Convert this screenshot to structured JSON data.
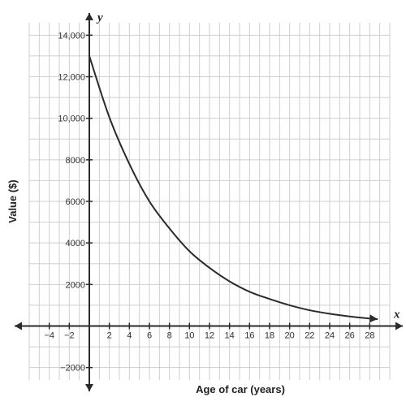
{
  "chart_data": {
    "type": "line",
    "title": "",
    "xlabel": "Age of car (years)",
    "ylabel": "Value ($)",
    "x_axis_var": "x",
    "y_axis_var": "y",
    "xlim": [
      -6,
      30
    ],
    "ylim": [
      -2600,
      14600
    ],
    "grid": true,
    "x_ticks": [
      -4,
      -2,
      2,
      4,
      6,
      8,
      10,
      12,
      14,
      16,
      18,
      20,
      22,
      24,
      26,
      28
    ],
    "x_tick_labels": [
      "−4",
      "−2",
      "2",
      "4",
      "6",
      "8",
      "10",
      "12",
      "14",
      "16",
      "18",
      "20",
      "22",
      "24",
      "26",
      "28"
    ],
    "y_ticks": [
      -2000,
      2000,
      4000,
      6000,
      8000,
      10000,
      12000,
      14000
    ],
    "y_tick_labels": [
      "−2000",
      "2000",
      "4000",
      "6000",
      "8000",
      "10,000",
      "12,000",
      "14,000"
    ],
    "series": [
      {
        "x": [
          0,
          2,
          4,
          6,
          8,
          10,
          12,
          14,
          16,
          18,
          20,
          22,
          24,
          26,
          28,
          28.8
        ],
        "y": [
          13000,
          10050,
          7800,
          6000,
          4700,
          3600,
          2800,
          2150,
          1650,
          1300,
          1000,
          760,
          590,
          460,
          360,
          330
        ]
      }
    ],
    "colors": {
      "curve": "#2b2b2b",
      "axis": "#2b2b2b",
      "grid": "#cfcfcf"
    }
  }
}
